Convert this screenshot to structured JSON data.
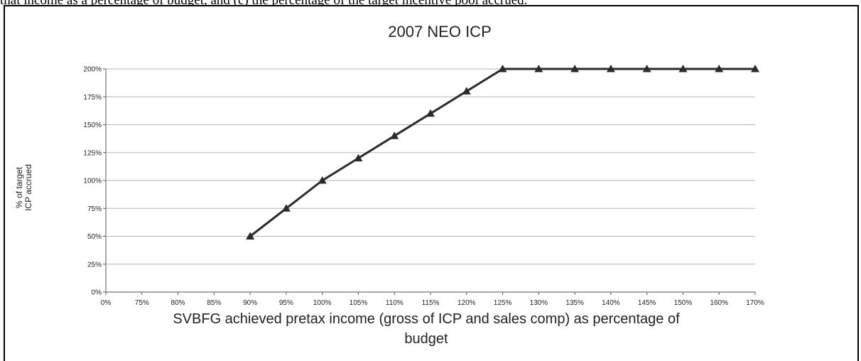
{
  "caption": "that income as a percentage of budget, and (c) the percentage of the target incentive pool accrued.",
  "chart_data": {
    "type": "line",
    "title": "2007 NEO ICP",
    "xlabel_lines": [
      "SVBFG achieved pretax income (gross of ICP and sales comp) as percentage of",
      "budget"
    ],
    "ylabel_lines": [
      "% of target",
      "ICP accrued"
    ],
    "categories": [
      "0%",
      "75%",
      "80%",
      "85%",
      "90%",
      "95%",
      "100%",
      "105%",
      "110%",
      "115%",
      "120%",
      "125%",
      "130%",
      "135%",
      "140%",
      "145%",
      "150%",
      "160%",
      "170%"
    ],
    "y_ticks": [
      "0%",
      "25%",
      "50%",
      "75%",
      "100%",
      "125%",
      "150%",
      "175%",
      "200%"
    ],
    "ylim": [
      0,
      200
    ],
    "grid": true,
    "legend": "none",
    "marker": "triangle",
    "line_color": "#2a2a2a",
    "series": [
      {
        "values": [
          null,
          null,
          null,
          null,
          50,
          75,
          100,
          120,
          140,
          160,
          180,
          200,
          200,
          200,
          200,
          200,
          200,
          200,
          200
        ]
      }
    ]
  }
}
